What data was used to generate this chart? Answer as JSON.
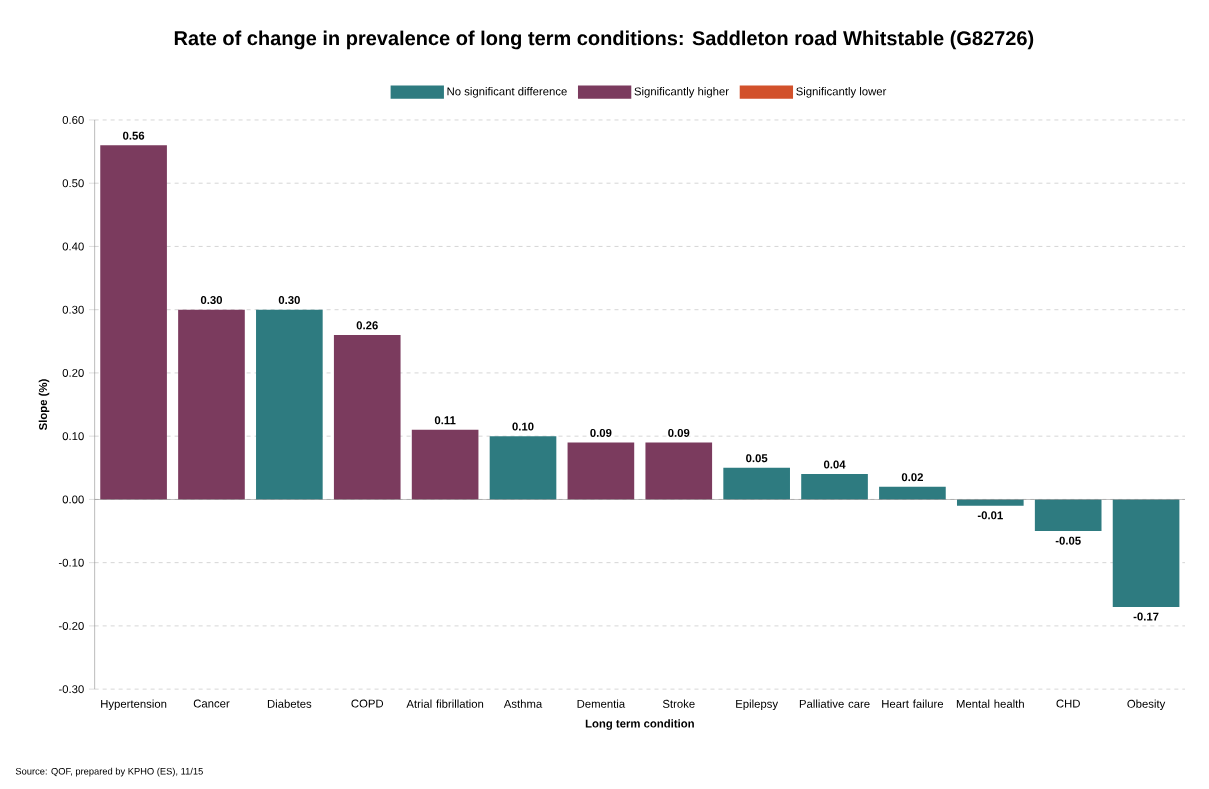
{
  "chart_data": {
    "type": "bar",
    "title": "Rate of change in prevalence of long term conditions: Saddleton road Whitstable (G82726)",
    "xlabel": "Long term condition",
    "ylabel": "Slope (%)",
    "annotations": [
      "Source: QOF, prepared by KPHO (ES), 11/15"
    ],
    "categories": [
      "Hypertension",
      "Cancer",
      "Diabetes",
      "COPD",
      "Atrial fibrillation",
      "Asthma",
      "Dementia",
      "Stroke",
      "Epilepsy",
      "Palliative care",
      "Heart failure",
      "Mental health",
      "CHD",
      "Obesity"
    ],
    "series": [
      {
        "name": "No significant difference",
        "color": "#2e7b80",
        "values": [
          null,
          null,
          0.3,
          null,
          null,
          0.1,
          null,
          null,
          0.05,
          0.04,
          0.02,
          -0.01,
          -0.05,
          -0.17
        ],
        "value_labels": [
          null,
          null,
          "0.30",
          null,
          null,
          "0.10",
          null,
          null,
          "0.05",
          "0.04",
          "0.02",
          "-0.01",
          "-0.05",
          "-0.17"
        ]
      },
      {
        "name": "Significantly higher",
        "color": "#7b3b5e",
        "values": [
          0.56,
          0.3,
          null,
          0.26,
          0.11,
          null,
          0.09,
          0.09,
          null,
          null,
          null,
          null,
          null,
          null
        ],
        "value_labels": [
          "0.56",
          "0.30",
          null,
          "0.26",
          "0.11",
          null,
          "0.09",
          "0.09",
          null,
          null,
          null,
          null,
          null,
          null
        ]
      },
      {
        "name": "Significantly lower",
        "color": "#d2512b",
        "values": [
          null,
          null,
          null,
          null,
          null,
          null,
          null,
          null,
          null,
          null,
          null,
          null,
          null,
          null
        ]
      }
    ],
    "ylim": [
      -0.3,
      0.6
    ],
    "yticks": [
      {
        "value": -0.3,
        "label": "-0.30"
      },
      {
        "value": -0.2,
        "label": "-0.20"
      },
      {
        "value": -0.1,
        "label": "-0.10"
      },
      {
        "value": 0,
        "label": "0.00"
      },
      {
        "value": 0.1,
        "label": "0.10"
      },
      {
        "value": 0.2,
        "label": "0.20"
      },
      {
        "value": 0.3,
        "label": "0.30"
      },
      {
        "value": 0.4,
        "label": "0.40"
      },
      {
        "value": 0.5,
        "label": "0.50"
      },
      {
        "value": 0.6,
        "label": "0.60"
      }
    ],
    "grid": "y",
    "legend": "top"
  }
}
